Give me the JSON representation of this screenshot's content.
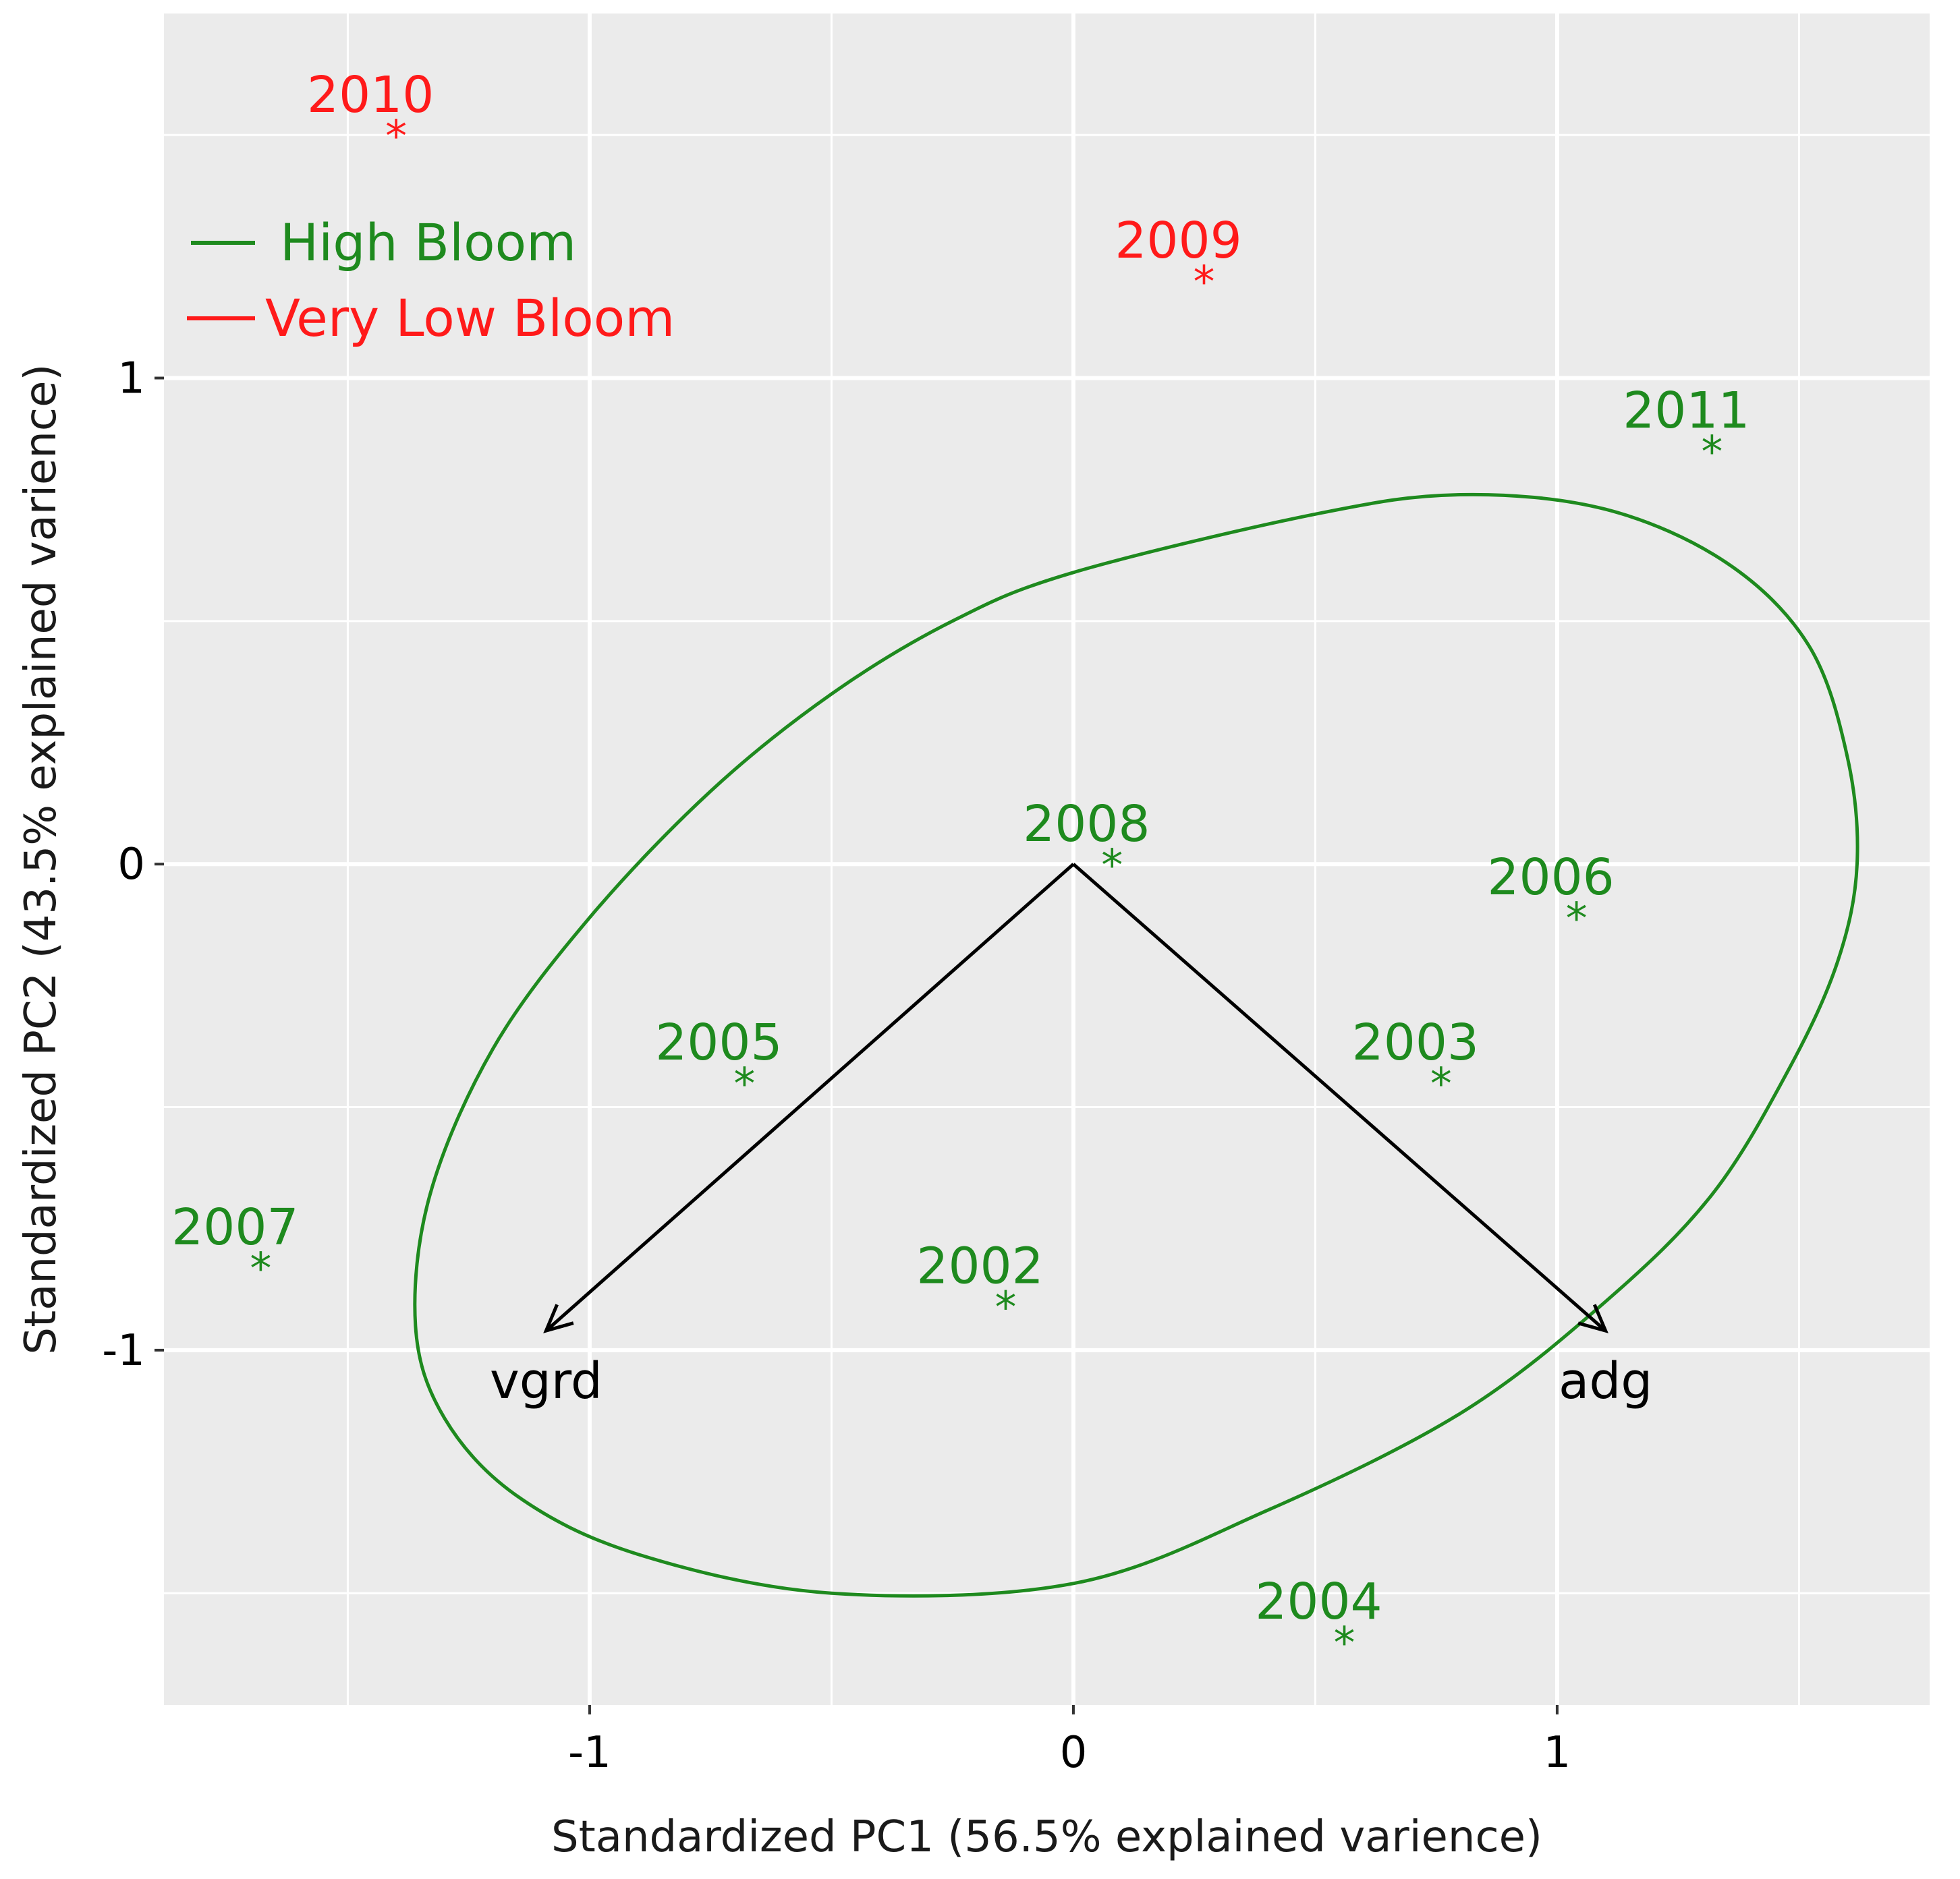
{
  "chart_data": {
    "type": "scatter",
    "title": "",
    "xlabel": "Standardized PC1 (56.5% explained varience)",
    "ylabel": "Standardized PC2 (43.5% explained varience)",
    "xlim": [
      -1.88,
      1.77
    ],
    "ylim": [
      -1.73,
      1.75
    ],
    "x_ticks": [
      -1,
      0,
      1
    ],
    "x_tick_labels": [
      "-1",
      "0",
      "1"
    ],
    "y_ticks": [
      -1,
      0,
      1
    ],
    "y_tick_labels": [
      "-1",
      "0",
      "1"
    ],
    "x_minor": [
      -1.5,
      -0.5,
      0.5,
      1.5
    ],
    "y_minor": [
      -1.5,
      -0.5,
      0.5,
      1.5
    ],
    "grid": true,
    "panel_color": "#ebebeb",
    "legend": {
      "position": "top-left",
      "entries": [
        {
          "label": "High Bloom",
          "color": "#1e8a1e"
        },
        {
          "label": "Very Low Bloom",
          "color": "#ff1a1a"
        }
      ]
    },
    "series": [
      {
        "name": "High Bloom",
        "color": "#1e8a1e",
        "points": [
          {
            "label": "2002",
            "x": -0.14,
            "y": -0.89
          },
          {
            "label": "2003",
            "x": 0.76,
            "y": -0.43
          },
          {
            "label": "2004",
            "x": 0.56,
            "y": -1.58
          },
          {
            "label": "2005",
            "x": -0.68,
            "y": -0.43
          },
          {
            "label": "2006",
            "x": 1.04,
            "y": -0.09
          },
          {
            "label": "2007",
            "x": -1.68,
            "y": -0.81
          },
          {
            "label": "2008",
            "x": 0.08,
            "y": 0.02
          },
          {
            "label": "2011",
            "x": 1.32,
            "y": 0.87
          }
        ]
      },
      {
        "name": "Very Low Bloom",
        "color": "#ff1a1a",
        "points": [
          {
            "label": "2009",
            "x": 0.27,
            "y": 1.22
          },
          {
            "label": "2010",
            "x": -1.4,
            "y": 1.52
          }
        ]
      }
    ],
    "arrows": [
      {
        "label": "vgrd",
        "x": -1.09,
        "y": -0.96
      },
      {
        "label": "adg",
        "x": 1.1,
        "y": -0.96
      }
    ],
    "ellipse": {
      "series": "High Bloom",
      "color": "#1e8a1e",
      "points": [
        [
          0.0,
          0.6
        ],
        [
          0.5,
          0.72
        ],
        [
          0.8,
          0.76
        ],
        [
          1.1,
          0.73
        ],
        [
          1.35,
          0.62
        ],
        [
          1.52,
          0.45
        ],
        [
          1.6,
          0.22
        ],
        [
          1.62,
          0.0
        ],
        [
          1.58,
          -0.2
        ],
        [
          1.48,
          -0.42
        ],
        [
          1.32,
          -0.68
        ],
        [
          1.1,
          -0.9
        ],
        [
          0.8,
          -1.13
        ],
        [
          0.4,
          -1.33
        ],
        [
          0.0,
          -1.48
        ],
        [
          -0.5,
          -1.5
        ],
        [
          -0.9,
          -1.42
        ],
        [
          -1.15,
          -1.3
        ],
        [
          -1.3,
          -1.14
        ],
        [
          -1.36,
          -0.95
        ],
        [
          -1.33,
          -0.68
        ],
        [
          -1.2,
          -0.38
        ],
        [
          -1.0,
          -0.11
        ],
        [
          -0.75,
          0.15
        ],
        [
          -0.5,
          0.35
        ],
        [
          -0.25,
          0.5
        ]
      ]
    }
  }
}
